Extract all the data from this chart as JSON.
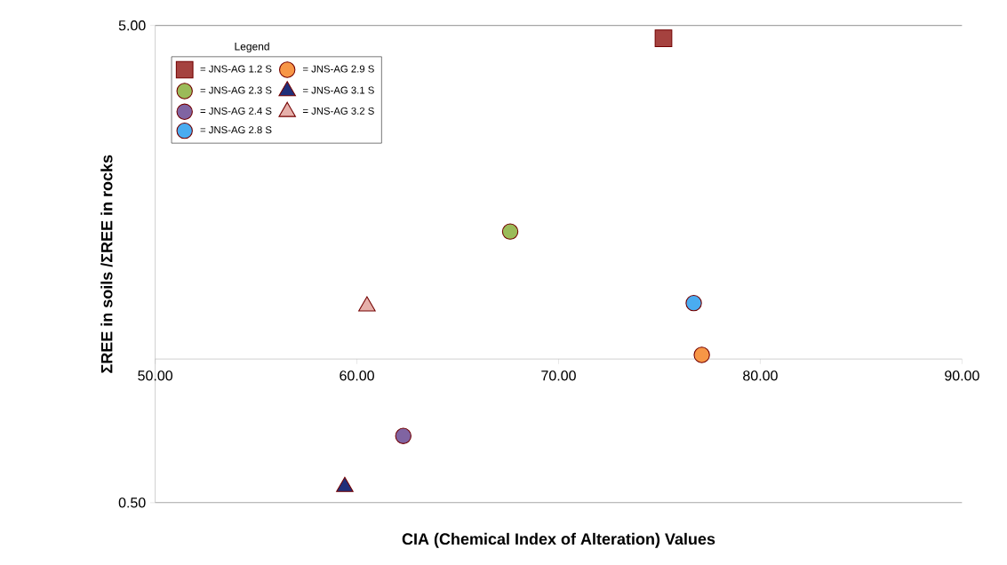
{
  "chart_data": {
    "type": "scatter",
    "xlabel": "CIA (Chemical Index of Alteration) Values",
    "ylabel": "ΣREE in soils /ΣREE in rocks",
    "legend_title": "Legend",
    "log": "y",
    "grid": "y",
    "legend": "top left",
    "xlim": [
      50,
      90
    ],
    "xticks": [
      {
        "value": 50,
        "label": "50.00"
      },
      {
        "value": 60,
        "label": "60.00"
      },
      {
        "value": 70,
        "label": "70.00"
      },
      {
        "value": 80,
        "label": "80.00"
      },
      {
        "value": 90,
        "label": "90.00"
      }
    ],
    "ylim": [
      0.5,
      5
    ],
    "yticks": [
      {
        "value": 0.5,
        "label": "0.50"
      },
      {
        "value": 5,
        "label": "5.00"
      }
    ],
    "series": [
      {
        "name": "= JNS-AG 1.2 S",
        "color": "#a5423f",
        "marker": "square",
        "x": [
          75.2
        ],
        "values": [
          4.7
        ]
      },
      {
        "name": "= JNS-AG 2.3 S",
        "color": "#9bbb59",
        "marker": "circle",
        "x": [
          67.6
        ],
        "values": [
          1.85
        ]
      },
      {
        "name": "= JNS-AG 2.4 S",
        "color": "#8064a2",
        "marker": "circle",
        "x": [
          62.3
        ],
        "values": [
          0.69
        ]
      },
      {
        "name": "= JNS-AG 2.8 S",
        "color": "#4aacf0",
        "marker": "circle",
        "x": [
          76.7
        ],
        "values": [
          1.31
        ]
      },
      {
        "name": "= JNS-AG 2.9 S",
        "color": "#f79646",
        "marker": "circle",
        "x": [
          77.1
        ],
        "values": [
          1.02
        ]
      },
      {
        "name": "= JNS-AG 3.1 S",
        "color": "#1f2f7a",
        "marker": "triangle",
        "x": [
          59.4
        ],
        "values": [
          0.54
        ]
      },
      {
        "name": "= JNS-AG 3.2 S",
        "color": "#e6b0aa",
        "marker": "triangle",
        "x": [
          60.5
        ],
        "values": [
          1.29
        ]
      }
    ]
  }
}
